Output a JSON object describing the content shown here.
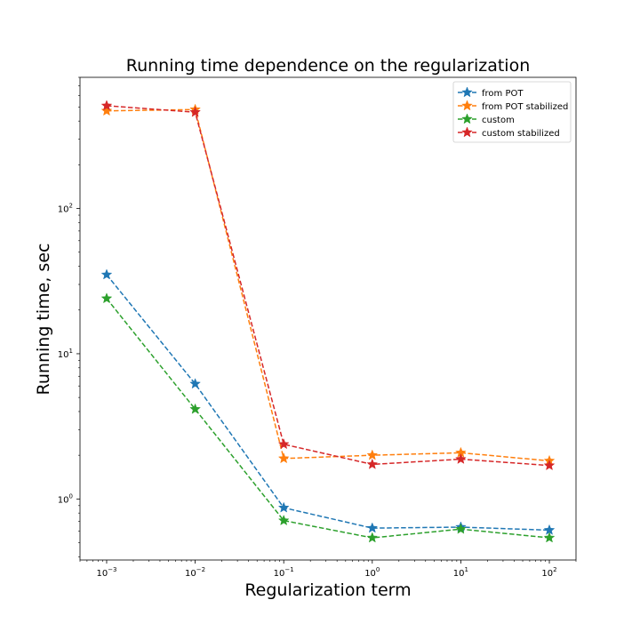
{
  "chart_data": {
    "type": "line",
    "title": "Running time dependence on the regularization",
    "xlabel": "Regularization term",
    "ylabel": "Running time, sec",
    "x_scale": "log",
    "y_scale": "log",
    "xlim": [
      0.0005,
      200
    ],
    "ylim": [
      0.38,
      800
    ],
    "grid": false,
    "legend_position": "top-right",
    "x_ticks": [
      {
        "value": 0.001,
        "base": "10",
        "exp": "−3"
      },
      {
        "value": 0.01,
        "base": "10",
        "exp": "−2"
      },
      {
        "value": 0.1,
        "base": "10",
        "exp": "−1"
      },
      {
        "value": 1,
        "base": "10",
        "exp": "0"
      },
      {
        "value": 10,
        "base": "10",
        "exp": "1"
      },
      {
        "value": 100,
        "base": "10",
        "exp": "2"
      }
    ],
    "y_ticks": [
      {
        "value": 1,
        "base": "10",
        "exp": "0"
      },
      {
        "value": 10,
        "base": "10",
        "exp": "1"
      },
      {
        "value": 100,
        "base": "10",
        "exp": "2"
      }
    ],
    "x": [
      0.001,
      0.01,
      0.1,
      1,
      10,
      100
    ],
    "series": [
      {
        "name": "from POT",
        "color": "#1f77b4",
        "marker": "star",
        "linestyle": "dashed",
        "values": [
          35,
          6.2,
          0.87,
          0.63,
          0.64,
          0.61
        ]
      },
      {
        "name": "from POT stabilized",
        "color": "#ff7f0e",
        "marker": "star",
        "linestyle": "dashed",
        "values": [
          470,
          480,
          1.9,
          2.0,
          2.08,
          1.83
        ]
      },
      {
        "name": "custom",
        "color": "#2ca02c",
        "marker": "star",
        "linestyle": "dashed",
        "values": [
          24,
          4.15,
          0.71,
          0.54,
          0.62,
          0.54
        ]
      },
      {
        "name": "custom stabilized",
        "color": "#d62728",
        "marker": "star",
        "linestyle": "dashed",
        "values": [
          510,
          460,
          2.38,
          1.73,
          1.88,
          1.7
        ]
      }
    ]
  }
}
